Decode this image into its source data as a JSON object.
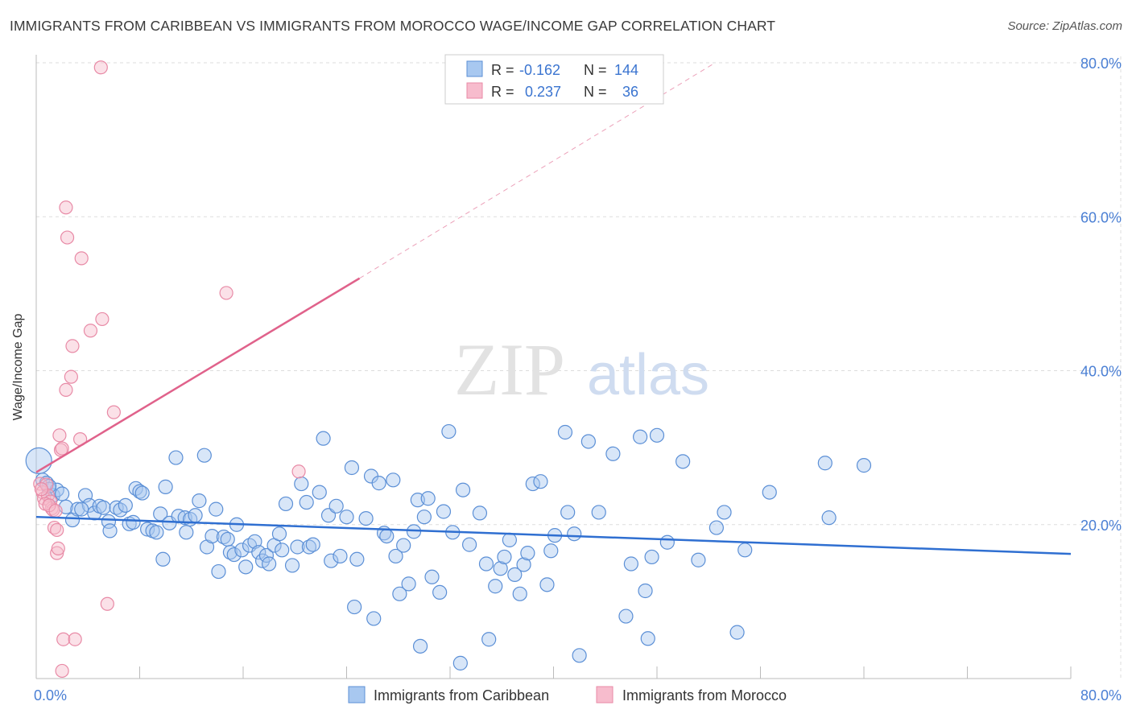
{
  "title": "IMMIGRANTS FROM CARIBBEAN VS IMMIGRANTS FROM MOROCCO WAGE/INCOME GAP CORRELATION CHART",
  "source": "Source: ZipAtlas.com",
  "watermark": {
    "zip": "ZIP",
    "atlas": "atlas"
  },
  "legend_box": {
    "row1": {
      "r_label": "R =",
      "r_value": "-0.162",
      "n_label": "N =",
      "n_value": "144"
    },
    "row2": {
      "r_label": "R =",
      "r_value": "0.237",
      "n_label": "N =",
      "n_value": "36"
    }
  },
  "colors": {
    "caribbean_fill": "#a8c8f0",
    "caribbean_stroke": "#5b8fd6",
    "caribbean_line": "#2f6fd1",
    "morocco_fill": "#f7bccd",
    "morocco_stroke": "#e88aa6",
    "morocco_line": "#e0628b",
    "axis_text": "#4a7fd4",
    "grid": "#dddddd"
  },
  "chart_data": {
    "type": "scatter",
    "xlabel": "",
    "ylabel": "Wage/Income Gap",
    "xlim": [
      0,
      80
    ],
    "ylim": [
      0,
      80
    ],
    "x_tick_labels": [
      "0.0%",
      "80.0%"
    ],
    "y_tick_labels": [
      "20.0%",
      "40.0%",
      "60.0%",
      "80.0%"
    ],
    "y_ticks": [
      20,
      40,
      60,
      80
    ],
    "grid": true,
    "legend_placement": "bottom",
    "series": [
      {
        "name": "Immigrants from Caribbean",
        "r": -0.162,
        "n": 144,
        "trend": {
          "x": [
            0,
            80
          ],
          "y": [
            21.0,
            16.2
          ]
        },
        "points": [
          [
            0.2,
            28.3
          ],
          [
            0.5,
            25.8
          ],
          [
            0.8,
            25.4
          ],
          [
            1.0,
            24.6
          ],
          [
            1.3,
            23.8
          ],
          [
            1.6,
            24.5
          ],
          [
            2.0,
            24.0
          ],
          [
            2.3,
            22.3
          ],
          [
            2.8,
            20.6
          ],
          [
            3.2,
            22.0
          ],
          [
            3.8,
            23.8
          ],
          [
            4.1,
            22.5
          ],
          [
            4.5,
            21.5
          ],
          [
            4.9,
            22.4
          ],
          [
            5.2,
            22.2
          ],
          [
            5.6,
            20.4
          ],
          [
            5.7,
            19.2
          ],
          [
            6.2,
            22.2
          ],
          [
            6.5,
            21.9
          ],
          [
            6.9,
            22.5
          ],
          [
            7.2,
            20.1
          ],
          [
            7.5,
            20.3
          ],
          [
            7.7,
            24.7
          ],
          [
            8.0,
            24.3
          ],
          [
            8.2,
            24.1
          ],
          [
            8.6,
            19.4
          ],
          [
            9.0,
            19.2
          ],
          [
            9.3,
            19.0
          ],
          [
            9.6,
            21.4
          ],
          [
            9.8,
            15.5
          ],
          [
            10.0,
            24.9
          ],
          [
            10.3,
            20.2
          ],
          [
            10.8,
            28.7
          ],
          [
            11.0,
            21.1
          ],
          [
            11.5,
            20.9
          ],
          [
            11.6,
            19.0
          ],
          [
            11.9,
            20.7
          ],
          [
            12.3,
            21.2
          ],
          [
            12.6,
            23.1
          ],
          [
            13.0,
            29.0
          ],
          [
            13.2,
            17.1
          ],
          [
            13.6,
            18.5
          ],
          [
            13.9,
            22.0
          ],
          [
            14.1,
            13.9
          ],
          [
            14.5,
            18.4
          ],
          [
            14.8,
            18.1
          ],
          [
            15.0,
            16.4
          ],
          [
            15.3,
            16.1
          ],
          [
            15.5,
            20.0
          ],
          [
            15.9,
            16.7
          ],
          [
            16.2,
            14.5
          ],
          [
            16.5,
            17.3
          ],
          [
            16.9,
            17.8
          ],
          [
            17.2,
            16.4
          ],
          [
            17.5,
            15.3
          ],
          [
            17.8,
            16.0
          ],
          [
            18.0,
            14.9
          ],
          [
            18.4,
            17.3
          ],
          [
            18.8,
            18.8
          ],
          [
            19.0,
            16.7
          ],
          [
            19.3,
            22.7
          ],
          [
            19.8,
            14.7
          ],
          [
            20.2,
            17.1
          ],
          [
            20.5,
            25.3
          ],
          [
            20.9,
            22.9
          ],
          [
            21.1,
            17.1
          ],
          [
            21.4,
            17.4
          ],
          [
            21.9,
            24.2
          ],
          [
            22.2,
            31.2
          ],
          [
            22.6,
            21.2
          ],
          [
            22.8,
            15.3
          ],
          [
            23.2,
            22.4
          ],
          [
            23.5,
            15.9
          ],
          [
            24.0,
            21.0
          ],
          [
            24.4,
            27.4
          ],
          [
            24.6,
            9.3
          ],
          [
            24.8,
            15.5
          ],
          [
            25.5,
            20.8
          ],
          [
            25.9,
            26.3
          ],
          [
            26.1,
            7.8
          ],
          [
            26.5,
            25.4
          ],
          [
            26.9,
            18.9
          ],
          [
            27.1,
            18.5
          ],
          [
            27.6,
            25.8
          ],
          [
            27.8,
            15.9
          ],
          [
            28.1,
            11.0
          ],
          [
            28.4,
            17.3
          ],
          [
            28.8,
            12.3
          ],
          [
            29.2,
            19.1
          ],
          [
            29.5,
            23.2
          ],
          [
            29.7,
            4.2
          ],
          [
            30.0,
            21.0
          ],
          [
            30.3,
            23.4
          ],
          [
            30.6,
            13.2
          ],
          [
            31.2,
            11.2
          ],
          [
            31.5,
            21.7
          ],
          [
            31.9,
            32.1
          ],
          [
            32.2,
            19.0
          ],
          [
            32.8,
            2.0
          ],
          [
            33.0,
            24.5
          ],
          [
            33.5,
            17.4
          ],
          [
            34.3,
            21.5
          ],
          [
            34.8,
            14.9
          ],
          [
            35.0,
            5.1
          ],
          [
            35.5,
            12.0
          ],
          [
            35.9,
            14.3
          ],
          [
            36.2,
            15.8
          ],
          [
            36.6,
            18.0
          ],
          [
            37.0,
            13.5
          ],
          [
            37.4,
            11.0
          ],
          [
            37.7,
            14.8
          ],
          [
            38.0,
            16.3
          ],
          [
            38.4,
            25.3
          ],
          [
            39.0,
            25.6
          ],
          [
            39.5,
            12.2
          ],
          [
            39.8,
            16.6
          ],
          [
            40.1,
            18.6
          ],
          [
            40.9,
            32.0
          ],
          [
            41.1,
            21.6
          ],
          [
            41.6,
            18.8
          ],
          [
            42.0,
            3.0
          ],
          [
            42.7,
            30.8
          ],
          [
            43.5,
            21.6
          ],
          [
            44.6,
            29.2
          ],
          [
            45.6,
            8.1
          ],
          [
            46.0,
            14.9
          ],
          [
            46.7,
            31.4
          ],
          [
            47.1,
            11.4
          ],
          [
            47.3,
            5.2
          ],
          [
            47.6,
            15.8
          ],
          [
            48.0,
            31.6
          ],
          [
            48.8,
            17.7
          ],
          [
            50.0,
            28.2
          ],
          [
            51.2,
            15.4
          ],
          [
            52.6,
            19.6
          ],
          [
            53.2,
            21.6
          ],
          [
            54.2,
            6.0
          ],
          [
            54.8,
            16.7
          ],
          [
            56.7,
            24.2
          ],
          [
            61.0,
            28.0
          ],
          [
            61.3,
            20.9
          ],
          [
            64.0,
            27.7
          ],
          [
            1.0,
            25.0
          ],
          [
            3.5,
            22.0
          ]
        ]
      },
      {
        "name": "Immigrants from Morocco",
        "r": 0.237,
        "n": 36,
        "trend": {
          "x": [
            0,
            25
          ],
          "y": [
            26.8,
            52.0
          ]
        },
        "trend_dashed": {
          "x": [
            25,
            52.5
          ],
          "y": [
            52.0,
            80.0
          ]
        },
        "points": [
          [
            0.3,
            25.3
          ],
          [
            0.5,
            24.2
          ],
          [
            0.6,
            23.4
          ],
          [
            0.8,
            25.2
          ],
          [
            0.9,
            23.8
          ],
          [
            1.1,
            23.0
          ],
          [
            1.2,
            22.1
          ],
          [
            1.3,
            21.9
          ],
          [
            1.4,
            19.6
          ],
          [
            1.6,
            16.3
          ],
          [
            1.6,
            19.3
          ],
          [
            1.7,
            16.9
          ],
          [
            1.8,
            31.6
          ],
          [
            1.9,
            29.7
          ],
          [
            2.0,
            29.9
          ],
          [
            2.0,
            1.0
          ],
          [
            2.1,
            5.1
          ],
          [
            2.3,
            61.2
          ],
          [
            2.3,
            37.5
          ],
          [
            2.4,
            57.3
          ],
          [
            2.7,
            39.2
          ],
          [
            2.8,
            43.2
          ],
          [
            3.0,
            5.1
          ],
          [
            3.4,
            31.1
          ],
          [
            3.5,
            54.6
          ],
          [
            4.2,
            45.2
          ],
          [
            5.0,
            79.4
          ],
          [
            5.1,
            46.7
          ],
          [
            5.5,
            9.7
          ],
          [
            6.0,
            34.6
          ],
          [
            14.7,
            50.1
          ],
          [
            20.3,
            26.9
          ],
          [
            0.4,
            24.6
          ],
          [
            0.7,
            22.7
          ],
          [
            1.0,
            22.5
          ],
          [
            1.5,
            21.8
          ]
        ]
      }
    ]
  }
}
